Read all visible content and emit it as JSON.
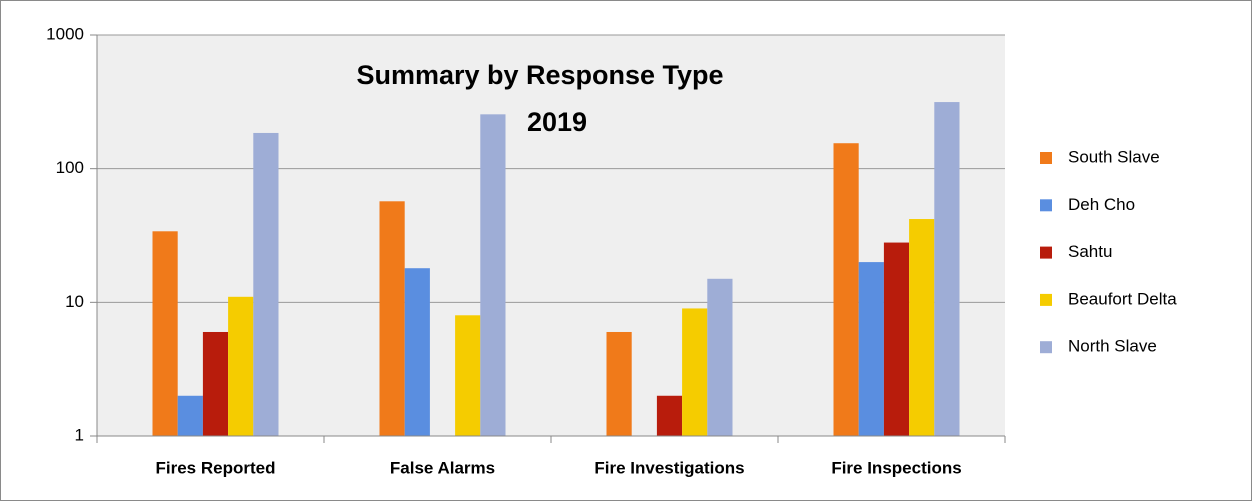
{
  "chart_data": {
    "type": "bar",
    "title": "Summary by Response Type",
    "subtitle": "2019",
    "categories": [
      "Fires Reported",
      "False Alarms",
      "Fire Investigations",
      "Fire Inspections"
    ],
    "series": [
      {
        "name": "South Slave",
        "color": "#f07a1a",
        "values": [
          34,
          57,
          6,
          155
        ]
      },
      {
        "name": "Deh Cho",
        "color": "#5a8ee0",
        "values": [
          2,
          18,
          null,
          20
        ]
      },
      {
        "name": "Sahtu",
        "color": "#b81c0c",
        "values": [
          6,
          null,
          2,
          28
        ]
      },
      {
        "name": "Beaufort Delta",
        "color": "#f5cc00",
        "values": [
          11,
          8,
          9,
          42
        ]
      },
      {
        "name": "North Slave",
        "color": "#9eadd6",
        "values": [
          185,
          255,
          15,
          315
        ]
      }
    ],
    "log_scale": true,
    "ylim": [
      1,
      1000
    ],
    "yticks": [
      1,
      10,
      100,
      1000
    ],
    "grid": true,
    "legend": "right"
  }
}
